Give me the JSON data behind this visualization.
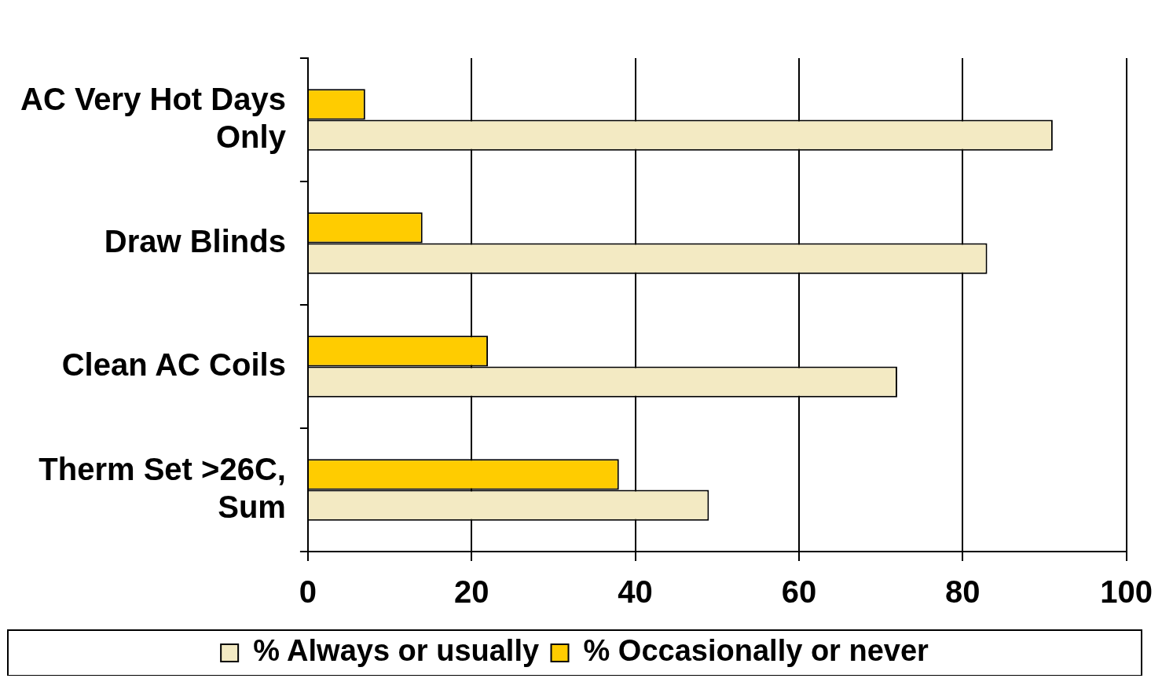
{
  "chart_data": {
    "type": "bar",
    "orientation": "horizontal",
    "categories": [
      "AC Very Hot Days Only",
      "Draw Blinds",
      "Clean AC Coils",
      "Therm Set >26C, Sum"
    ],
    "series": [
      {
        "name": "% Always or usually",
        "color": "#f3eac3",
        "values": [
          91,
          83,
          72,
          49
        ]
      },
      {
        "name": "% Occasionally or never",
        "color": "#ffcc00",
        "values": [
          7,
          14,
          22,
          38
        ]
      }
    ],
    "xlim": [
      0,
      100
    ],
    "xticks": [
      0,
      20,
      40,
      60,
      80,
      100
    ],
    "grid": "x",
    "legend": "bottom"
  }
}
